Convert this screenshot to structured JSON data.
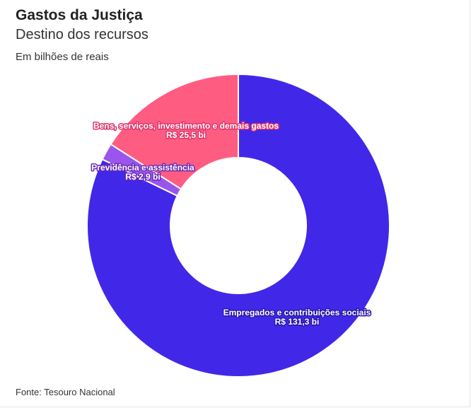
{
  "header": {
    "title": "Gastos da Justiça",
    "subtitle": "Destino dos recursos",
    "unit": "Em bilhões de reais"
  },
  "footer": {
    "source": "Fonte: Tesouro Nacional"
  },
  "chart_data": {
    "type": "pie",
    "donut": true,
    "unit": "Em bilhões de reais",
    "slices": [
      {
        "name": "Empregados e contribuições sociais",
        "value": 131.3,
        "label": "R$ 131,3 bi",
        "color": "#4128e8",
        "outline": "#2a17a8"
      },
      {
        "name": "Previdência e assistência",
        "value": 2.9,
        "label": "R$ 2,9 bi",
        "color": "#9a55ec",
        "outline": "#6a2bb8"
      },
      {
        "name": "Bens, serviços, investimento e demais gastos",
        "value": 25.5,
        "label": "R$ 25,5 bi",
        "color": "#ff5c82",
        "outline": "#e0356a"
      }
    ]
  }
}
